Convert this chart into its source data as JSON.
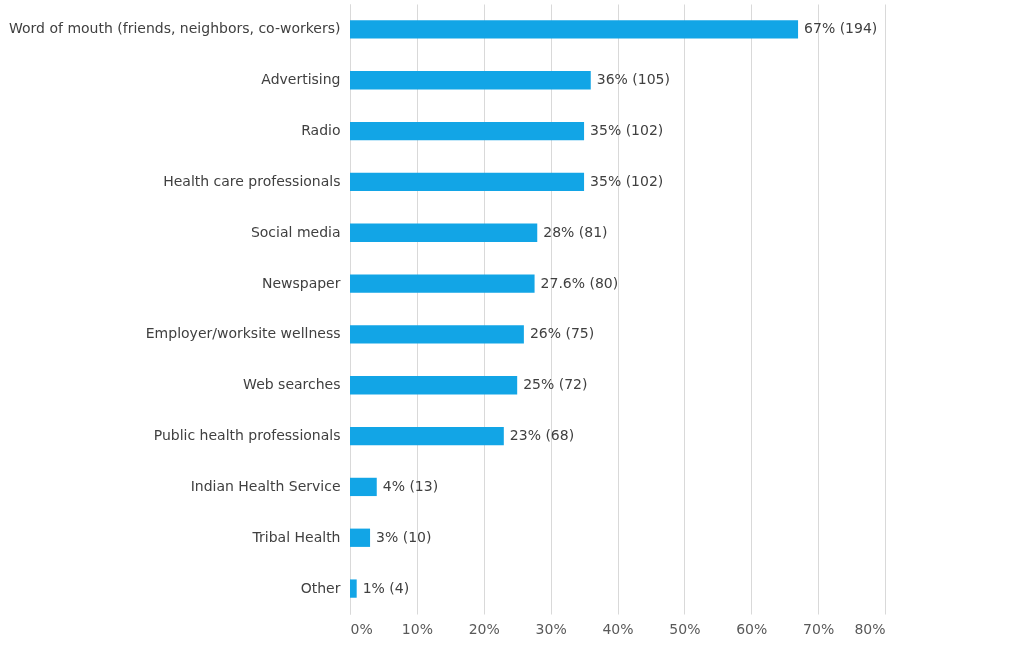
{
  "chart_data": {
    "type": "bar",
    "orientation": "horizontal",
    "categories": [
      "Word of mouth (friends, neighbors, co-workers)",
      "Advertising",
      "Radio",
      "Health care professionals",
      "Social media",
      "Newspaper",
      "Employer/worksite wellness",
      "Web searches",
      "Public health professionals",
      "Indian Health Service",
      "Tribal Health",
      "Other"
    ],
    "values": [
      67,
      36,
      35,
      35,
      28,
      27.6,
      26,
      25,
      23,
      4,
      3,
      1
    ],
    "value_labels": [
      "67% (194)",
      "36% (105)",
      "35% (102)",
      "35% (102)",
      "28% (81)",
      "27.6% (80)",
      "26% (75)",
      "25% (72)",
      "23% (68)",
      "4% (13)",
      "3% (10)",
      "1% (4)"
    ],
    "color": "#12a5e6",
    "xlim": [
      0,
      80
    ],
    "xticks": [
      {
        "value": 0,
        "label": "0%"
      },
      {
        "value": 10,
        "label": "10%"
      },
      {
        "value": 20,
        "label": "20%"
      },
      {
        "value": 30,
        "label": "30%"
      },
      {
        "value": 40,
        "label": "40%"
      },
      {
        "value": 50,
        "label": "50%"
      },
      {
        "value": 60,
        "label": "60%"
      },
      {
        "value": 70,
        "label": "70%"
      },
      {
        "value": 80,
        "label": "80%"
      }
    ],
    "grid": "x"
  }
}
